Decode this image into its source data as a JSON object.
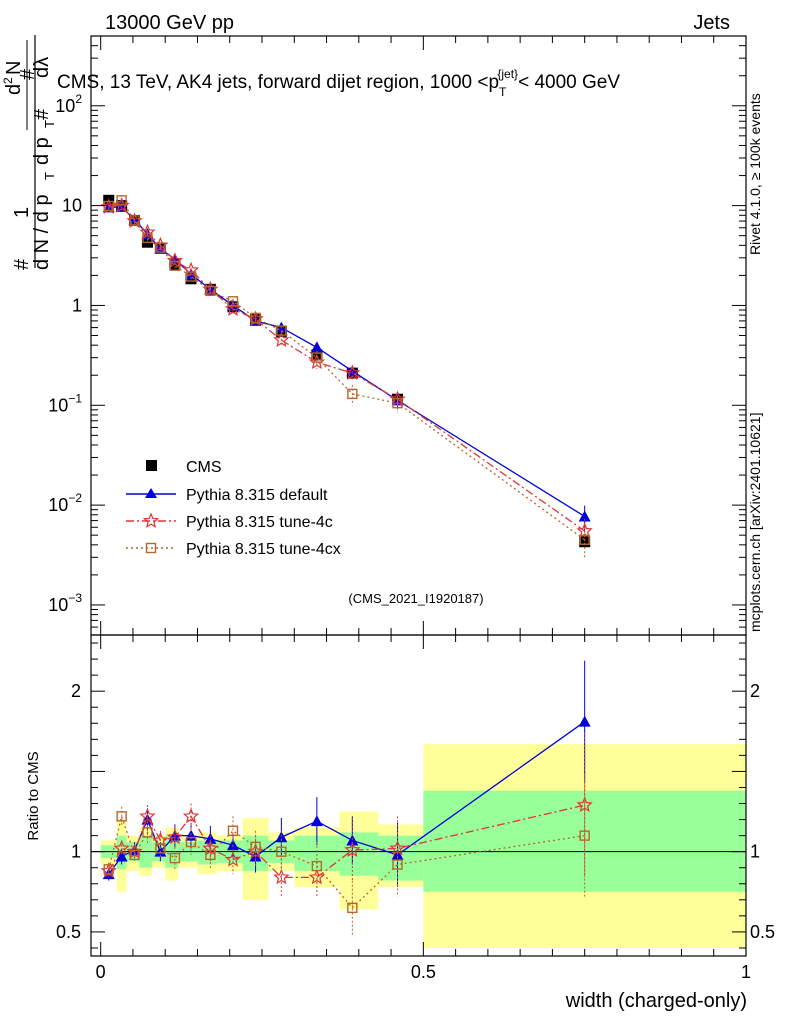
{
  "header": {
    "left": "13000 GeV pp",
    "right": "Jets"
  },
  "side": {
    "rivet": "Rivet 4.1.0, ≥ 100k events",
    "mcplots": "mcplots.cern.ch [arXiv:2401.10621]"
  },
  "chart_data": [
    {
      "type": "line",
      "panel": "main",
      "title": "CMS, 13 TeV, AK4 jets, forward dijet region, 1000 <p_T^{jet}< 4000 GeV",
      "title_parts": {
        "a": "CMS, 13 TeV, AK4 jets, forward dijet region, 1000 <p",
        "sup": "{jet}",
        "sub": "T",
        "b": "< 4000 GeV"
      },
      "ylabel": "1/dN/dp_T d²N/dp_T dλ",
      "yscale": "log",
      "ylim": [
        0.0005,
        500
      ],
      "xlim": [
        -0.015,
        1.0
      ],
      "yticks": [
        {
          "value": 0.001,
          "base": "10",
          "exp": "−3"
        },
        {
          "value": 0.01,
          "base": "10",
          "exp": "−2"
        },
        {
          "value": 0.1,
          "base": "10",
          "exp": "−1"
        },
        {
          "value": 1,
          "base": "1",
          "exp": ""
        },
        {
          "value": 10,
          "base": "10",
          "exp": ""
        },
        {
          "value": 100,
          "base": "10",
          "exp": "2"
        }
      ],
      "watermark": "(CMS_2021_I1920187)",
      "legend": [
        "CMS",
        "Pythia 8.315 default",
        "Pythia 8.315 tune-4c",
        "Pythia 8.315 tune-4cx"
      ],
      "x": [
        0.0125,
        0.0325,
        0.0525,
        0.0725,
        0.0925,
        0.115,
        0.14,
        0.17,
        0.205,
        0.24,
        0.28,
        0.335,
        0.39,
        0.46,
        0.75
      ],
      "series": [
        {
          "name": "CMS",
          "values": [
            11.3,
            10.0,
            7.1,
            4.3,
            3.75,
            2.55,
            1.85,
            1.45,
            0.97,
            0.73,
            0.55,
            0.32,
            0.21,
            0.115,
            0.0043
          ]
        },
        {
          "name": "Pythia 8.315 default",
          "values": [
            9.6,
            9.7,
            7.2,
            5.2,
            3.7,
            2.9,
            2.05,
            1.45,
            1.0,
            0.7,
            0.6,
            0.38,
            0.22,
            0.112,
            0.0077
          ]
        },
        {
          "name": "Pythia 8.315 tune-4c",
          "values": [
            9.7,
            10.0,
            7.0,
            5.4,
            4.0,
            2.8,
            2.25,
            1.45,
            0.92,
            0.73,
            0.45,
            0.27,
            0.21,
            0.115,
            0.0055
          ]
        },
        {
          "name": "Pythia 8.315 tune-4cx",
          "values": [
            9.9,
            11.3,
            7.1,
            4.75,
            3.8,
            2.5,
            1.95,
            1.4,
            1.1,
            0.75,
            0.56,
            0.3,
            0.13,
            0.105,
            0.0045
          ]
        }
      ],
      "errors": {
        "Pythia 8.315 default": [
          0.6,
          0.6,
          0.4,
          0.35,
          0.25,
          0.2,
          0.15,
          0.1,
          0.07,
          0.06,
          0.06,
          0.05,
          0.03,
          0.02,
          0.0022
        ],
        "Pythia 8.315 tune-4c": [
          0.6,
          0.6,
          0.4,
          0.35,
          0.25,
          0.2,
          0.15,
          0.1,
          0.07,
          0.06,
          0.06,
          0.04,
          0.03,
          0.02,
          0.0018
        ],
        "Pythia 8.315 tune-4cx": [
          0.6,
          0.6,
          0.4,
          0.35,
          0.25,
          0.2,
          0.15,
          0.1,
          0.07,
          0.06,
          0.06,
          0.05,
          0.03,
          0.02,
          0.0015
        ]
      }
    },
    {
      "type": "line",
      "panel": "ratio",
      "ylabel": "Ratio to CMS",
      "xlabel": "width (charged-only)",
      "ylim": [
        0.35,
        2.35
      ],
      "xlim": [
        -0.015,
        1.0
      ],
      "yticks": [
        0.5,
        1,
        2
      ],
      "ytick_labels": [
        "0.5",
        "1",
        "2"
      ],
      "xticks": [
        0,
        0.5,
        1
      ],
      "xtick_labels": [
        "0",
        "0.5",
        "1"
      ],
      "bins": [
        {
          "lo": 0.0,
          "hi": 0.025,
          "inner": [
            0.96,
            1.04
          ],
          "outer": [
            0.92,
            1.07
          ]
        },
        {
          "lo": 0.025,
          "hi": 0.04,
          "inner": [
            0.89,
            1.1
          ],
          "outer": [
            0.75,
            1.2
          ]
        },
        {
          "lo": 0.04,
          "hi": 0.06,
          "inner": [
            0.94,
            1.06
          ],
          "outer": [
            0.88,
            1.1
          ]
        },
        {
          "lo": 0.06,
          "hi": 0.08,
          "inner": [
            0.9,
            1.1
          ],
          "outer": [
            0.85,
            1.15
          ]
        },
        {
          "lo": 0.08,
          "hi": 0.1,
          "inner": [
            0.94,
            1.06
          ],
          "outer": [
            0.9,
            1.1
          ]
        },
        {
          "lo": 0.1,
          "hi": 0.12,
          "inner": [
            0.9,
            1.1
          ],
          "outer": [
            0.82,
            1.15
          ]
        },
        {
          "lo": 0.12,
          "hi": 0.15,
          "inner": [
            0.94,
            1.06
          ],
          "outer": [
            0.9,
            1.1
          ]
        },
        {
          "lo": 0.15,
          "hi": 0.18,
          "inner": [
            0.92,
            1.07
          ],
          "outer": [
            0.86,
            1.12
          ]
        },
        {
          "lo": 0.18,
          "hi": 0.22,
          "inner": [
            0.93,
            1.07
          ],
          "outer": [
            0.88,
            1.1
          ]
        },
        {
          "lo": 0.22,
          "hi": 0.26,
          "inner": [
            0.88,
            1.1
          ],
          "outer": [
            0.7,
            1.21
          ]
        },
        {
          "lo": 0.26,
          "hi": 0.3,
          "inner": [
            0.93,
            1.07
          ],
          "outer": [
            0.88,
            1.12
          ]
        },
        {
          "lo": 0.3,
          "hi": 0.37,
          "inner": [
            0.88,
            1.1
          ],
          "outer": [
            0.78,
            1.15
          ]
        },
        {
          "lo": 0.37,
          "hi": 0.43,
          "inner": [
            0.85,
            1.12
          ],
          "outer": [
            0.64,
            1.25
          ]
        },
        {
          "lo": 0.43,
          "hi": 0.5,
          "inner": [
            0.82,
            1.1
          ],
          "outer": [
            0.78,
            1.17
          ]
        },
        {
          "lo": 0.5,
          "hi": 1.0,
          "inner": [
            0.75,
            1.38
          ],
          "outer": [
            0.4,
            1.67
          ]
        }
      ],
      "x": [
        0.0125,
        0.0325,
        0.0525,
        0.0725,
        0.0925,
        0.115,
        0.14,
        0.17,
        0.205,
        0.24,
        0.28,
        0.335,
        0.39,
        0.46,
        0.75
      ],
      "series": [
        {
          "name": "Pythia 8.315 default",
          "values": [
            0.86,
            0.97,
            1.01,
            1.2,
            1.0,
            1.1,
            1.1,
            1.08,
            1.04,
            0.97,
            1.09,
            1.19,
            1.07,
            0.98,
            1.81
          ]
        },
        {
          "name": "Pythia 8.315 tune-4c",
          "values": [
            0.88,
            1.02,
            1.0,
            1.22,
            1.07,
            1.09,
            1.22,
            1.02,
            0.95,
            1.0,
            0.84,
            0.84,
            1.01,
            1.02,
            1.29
          ]
        },
        {
          "name": "Pythia 8.315 tune-4cx",
          "values": [
            0.89,
            1.22,
            0.98,
            1.12,
            1.02,
            0.96,
            1.06,
            0.98,
            1.13,
            1.03,
            1.0,
            0.91,
            0.65,
            0.92,
            1.1
          ]
        }
      ],
      "errors": {
        "Pythia 8.315 default": [
          0.04,
          0.05,
          0.05,
          0.07,
          0.06,
          0.07,
          0.08,
          0.08,
          0.08,
          0.1,
          0.12,
          0.15,
          0.15,
          0.2,
          0.38
        ],
        "Pythia 8.315 tune-4c": [
          0.04,
          0.05,
          0.05,
          0.07,
          0.06,
          0.07,
          0.08,
          0.08,
          0.09,
          0.1,
          0.12,
          0.12,
          0.2,
          0.2,
          0.45
        ],
        "Pythia 8.315 tune-4cx": [
          0.04,
          0.06,
          0.05,
          0.07,
          0.06,
          0.07,
          0.08,
          0.08,
          0.09,
          0.1,
          0.13,
          0.15,
          0.17,
          0.2,
          0.38
        ]
      }
    }
  ],
  "colors": {
    "cms": "#000000",
    "default": "#0000dd",
    "tune4c": "#e03535",
    "tune4cx": "#b8652a",
    "band_inner": "#99ff99",
    "band_outer": "#ffff99",
    "watermark": "#999999",
    "side_text": "#8c8c8c"
  }
}
